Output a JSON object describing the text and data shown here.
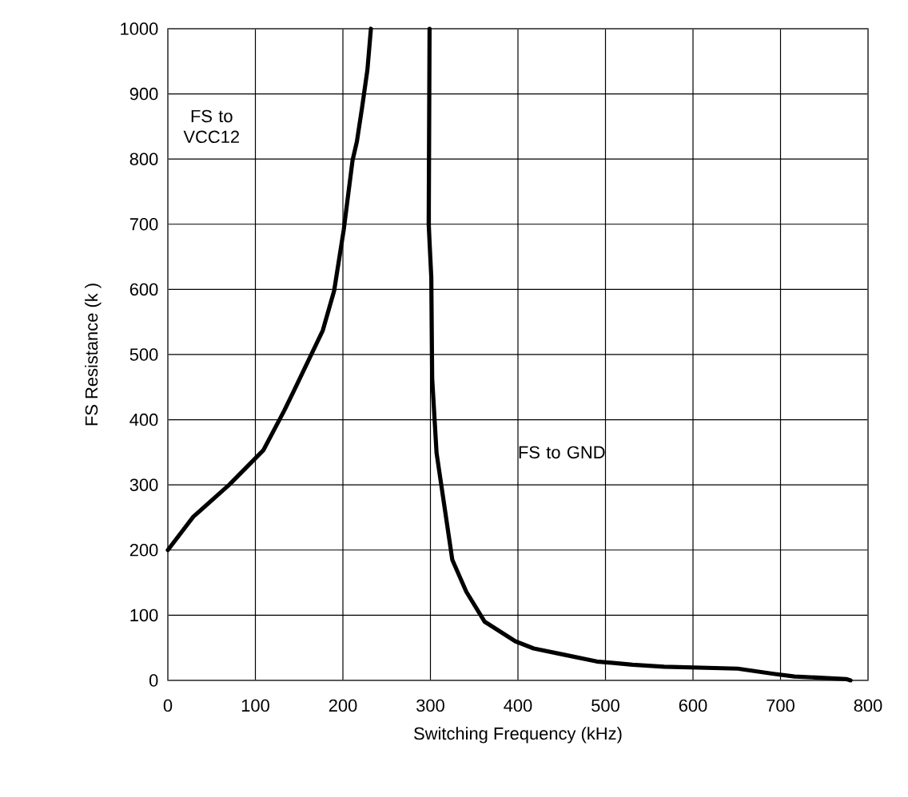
{
  "chart_data": {
    "type": "line",
    "xlabel": "Switching Frequency (kHz)",
    "ylabel": "FS Resistance (k  )",
    "xlim": [
      0,
      800
    ],
    "ylim": [
      0,
      1000
    ],
    "xticks": [
      0,
      100,
      200,
      300,
      400,
      500,
      600,
      700,
      800
    ],
    "yticks": [
      0,
      100,
      200,
      300,
      400,
      500,
      600,
      700,
      800,
      900,
      1000
    ],
    "grid": true,
    "annotations": [
      "FS to VCC12",
      "FS to GND"
    ],
    "series": [
      {
        "color": "#000000",
        "x": [
          0,
          29,
          70,
          109,
          133,
          145,
          177,
          190,
          201,
          211,
          216,
          222,
          228,
          232
        ],
        "values": [
          200,
          251,
          300,
          353,
          414,
          447,
          537,
          598,
          692,
          798,
          827,
          880,
          937,
          1000
        ]
      },
      {
        "color": "#000000",
        "x": [
          299,
          298,
          301,
          302,
          307,
          316,
          325,
          341,
          362,
          397,
          418,
          454,
          490,
          531,
          567,
          651,
          692,
          716,
          775,
          780
        ],
        "values": [
          1000,
          700,
          618,
          463,
          349,
          267,
          185,
          136,
          90,
          60,
          49,
          39,
          29,
          24,
          21,
          18,
          10,
          6,
          2,
          0
        ]
      }
    ]
  }
}
